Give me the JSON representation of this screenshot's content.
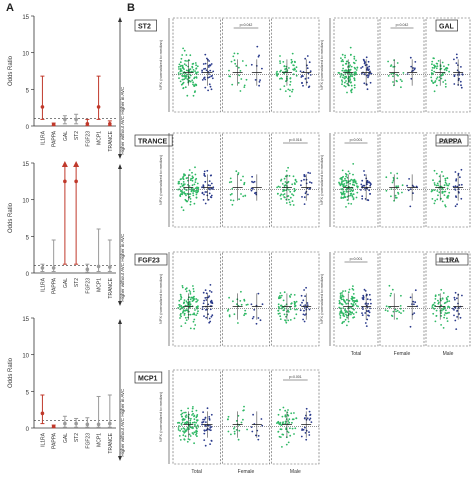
{
  "panel_labels": {
    "a": "A",
    "b": "B"
  },
  "colors": {
    "accent": "#c0392b",
    "muted": "#9a9a9a",
    "green": "#2fb865",
    "navy": "#2a3a8c",
    "frame": "#444444"
  },
  "panel_a": {
    "y_label": "Odds Ratio",
    "arrow_top": "Higher in AVC",
    "arrow_bottom": "Higher without AVC",
    "charts": [
      {
        "ymax": 15,
        "ticks": [
          "0",
          "5",
          "10",
          "15"
        ]
      },
      {
        "ymax": 15,
        "ticks": [
          "0",
          "5",
          "10",
          "15"
        ]
      },
      {
        "ymax": 15,
        "ticks": [
          "0",
          "5",
          "10",
          "15"
        ]
      }
    ]
  },
  "panel_b": {
    "y_label": "NPX (normalized to median)",
    "group_labels": [
      "Total",
      "Female",
      "Male"
    ],
    "pvals": [
      "p=0.001",
      "p=0.016",
      "p=0.042"
    ]
  },
  "chart_data": [
    {
      "type": "scatter",
      "ylabel": "Odds Ratio",
      "categories": [
        "IL1RA",
        "PAPPA",
        "GAL",
        "ST2",
        "FGF23",
        "MCP1",
        "TRANCE"
      ],
      "series": [
        {
          "point": [
            2.6,
            0.2,
            0.9,
            0.9,
            0.3,
            2.6,
            0.3
          ],
          "low": [
            0.9,
            0.05,
            0.3,
            0.3,
            0.05,
            0.9,
            0.05
          ],
          "high": [
            6.8,
            0.4,
            1.4,
            1.6,
            0.9,
            6.8,
            0.7
          ],
          "significant": [
            true,
            true,
            false,
            false,
            true,
            true,
            true
          ]
        }
      ],
      "ylim": [
        0,
        15
      ]
    },
    {
      "type": "scatter",
      "ylabel": "Odds Ratio",
      "categories": [
        "IL1RA",
        "PAPPA",
        "GAL",
        "ST2",
        "FGF23",
        "MCP1",
        "TRANCE"
      ],
      "series": [
        {
          "point": [
            0.7,
            0.7,
            12.5,
            12.5,
            0.5,
            0.9,
            0.8
          ],
          "low": [
            0.2,
            0.2,
            1.2,
            1.2,
            0.1,
            0.2,
            0.2
          ],
          "high": [
            1.2,
            4.5,
            15,
            15,
            1.2,
            6.0,
            4.5
          ],
          "significant": [
            false,
            false,
            true,
            true,
            false,
            false,
            false
          ]
        }
      ],
      "ylim": [
        0,
        15
      ]
    },
    {
      "type": "scatter",
      "ylabel": "Odds Ratio",
      "categories": [
        "IL1RA",
        "PAPPA",
        "GAL",
        "ST2",
        "FGF23",
        "MCP1",
        "TRANCE"
      ],
      "series": [
        {
          "point": [
            2.0,
            0.2,
            0.6,
            0.6,
            0.5,
            0.5,
            0.6
          ],
          "low": [
            0.6,
            0.05,
            0.1,
            0.1,
            0.1,
            0.1,
            0.1
          ],
          "high": [
            4.5,
            0.4,
            1.6,
            1.3,
            1.4,
            4.3,
            4.5
          ],
          "significant": [
            true,
            true,
            false,
            false,
            false,
            false,
            false
          ]
        }
      ],
      "ylim": [
        0,
        15
      ]
    }
  ],
  "scatter_panels": [
    {
      "title": "ST2",
      "sig": [
        "",
        "p=0.042",
        ""
      ]
    },
    {
      "title": "TRANCE",
      "sig": [
        "",
        "",
        "p=0.016"
      ]
    },
    {
      "title": "FGF23",
      "sig": [
        "",
        "",
        ""
      ]
    },
    {
      "title": "MCP1",
      "sig": [
        "",
        "",
        "p=0.001"
      ]
    },
    {
      "title": "GAL",
      "sig": [
        "",
        "p=0.042",
        ""
      ]
    },
    {
      "title": "PAPPA",
      "sig": [
        "p=0.001",
        "",
        "p=0.016"
      ]
    },
    {
      "title": "IL1RA",
      "sig": [
        "p=0.001",
        "",
        "p=0.016"
      ]
    }
  ]
}
